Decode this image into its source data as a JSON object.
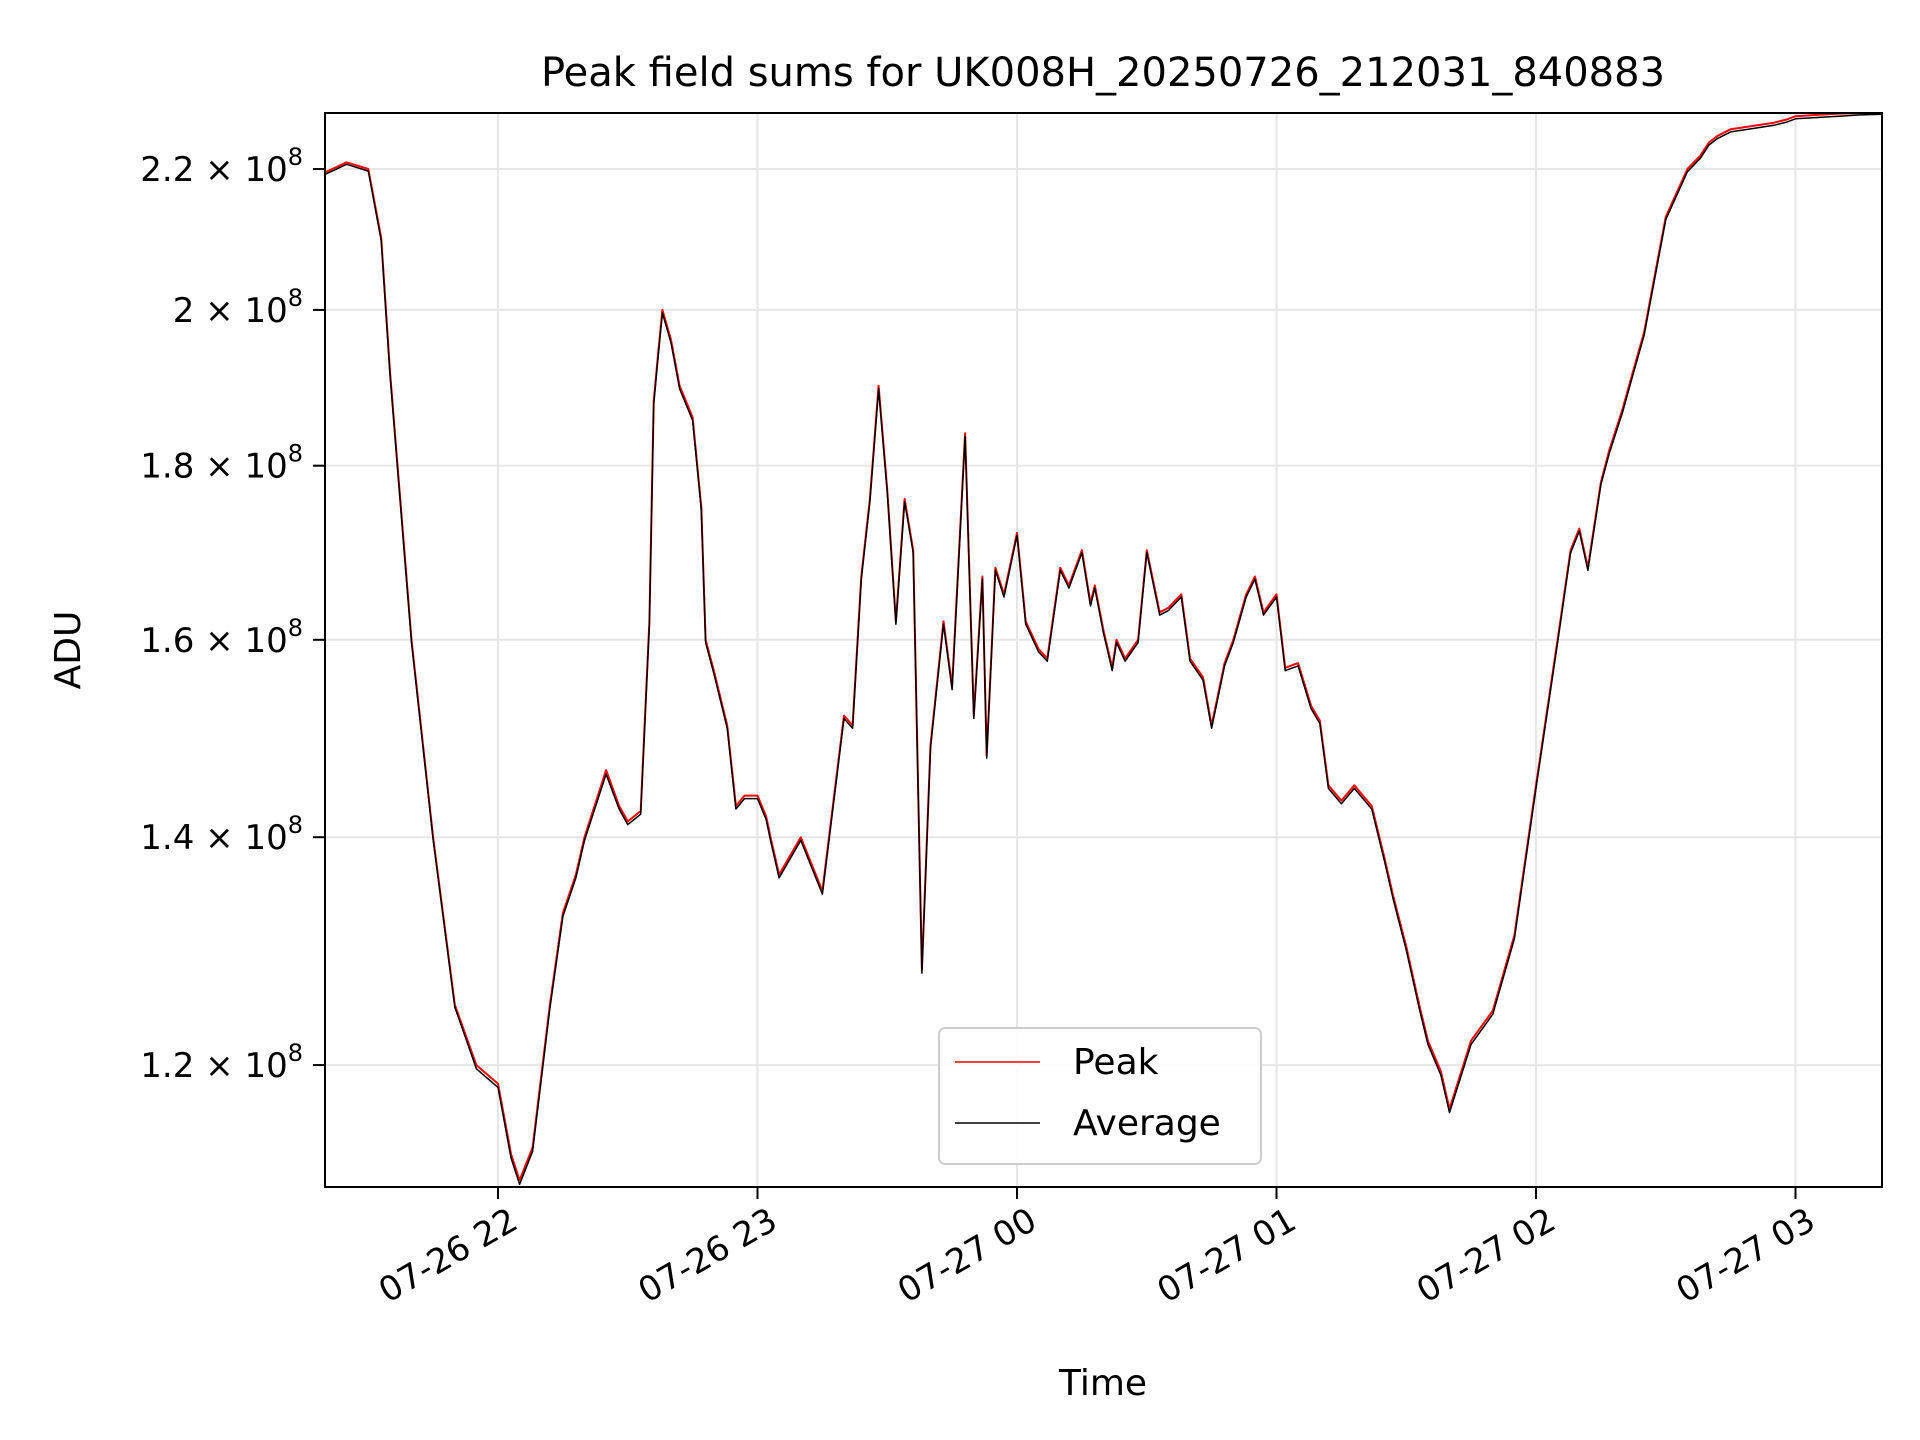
{
  "chart_data": {
    "type": "line",
    "title": "Peak field sums for UK008H_20250726_212031_840883",
    "xlabel": "Time",
    "ylabel": "ADU",
    "y_scale": "log",
    "xlim": [
      "2025-07-26 21:20",
      "2025-07-27 03:20"
    ],
    "ylim": [
      110500000,
      228500000
    ],
    "x_tick_labels": [
      "07-26 22",
      "07-26 23",
      "07-27 00",
      "07-27 01",
      "07-27 02",
      "07-27 03"
    ],
    "x_ticks": [
      "2025-07-26 22:00",
      "2025-07-26 23:00",
      "2025-07-27 00:00",
      "2025-07-27 01:00",
      "2025-07-27 02:00",
      "2025-07-27 03:00"
    ],
    "y_ticks": [
      {
        "value": 120000000,
        "mantissa": "1.2",
        "exp": "8"
      },
      {
        "value": 140000000,
        "mantissa": "1.4",
        "exp": "8"
      },
      {
        "value": 160000000,
        "mantissa": "1.6",
        "exp": "8"
      },
      {
        "value": 180000000,
        "mantissa": "1.8",
        "exp": "8"
      },
      {
        "value": 200000000,
        "mantissa": "2",
        "exp": "8"
      },
      {
        "value": 220000000,
        "mantissa": "2.2",
        "exp": "8"
      }
    ],
    "grid": true,
    "legend_position": "bottom-center",
    "x": [
      "21:20",
      "21:25",
      "21:30",
      "21:33",
      "21:35",
      "21:40",
      "21:45",
      "21:50",
      "21:55",
      "22:00",
      "22:03",
      "22:05",
      "22:08",
      "22:12",
      "22:15",
      "22:18",
      "22:20",
      "22:25",
      "22:28",
      "22:30",
      "22:33",
      "22:35",
      "22:36",
      "22:37",
      "22:38",
      "22:40",
      "22:42",
      "22:45",
      "22:47",
      "22:48",
      "22:50",
      "22:53",
      "22:55",
      "22:57",
      "23:00",
      "23:02",
      "23:03",
      "23:05",
      "23:10",
      "23:15",
      "23:20",
      "23:22",
      "23:24",
      "23:26",
      "23:28",
      "23:30",
      "23:32",
      "23:34",
      "23:36",
      "23:38",
      "23:40",
      "23:43",
      "23:45",
      "23:48",
      "23:50",
      "23:52",
      "23:53",
      "23:55",
      "23:57",
      "24:00",
      "24:02",
      "24:05",
      "24:07",
      "24:10",
      "24:12",
      "24:15",
      "24:17",
      "24:18",
      "24:20",
      "24:22",
      "24:23",
      "24:25",
      "24:28",
      "24:30",
      "24:33",
      "24:35",
      "24:38",
      "24:40",
      "24:43",
      "24:45",
      "24:48",
      "24:50",
      "24:53",
      "24:55",
      "24:57",
      "25:00",
      "25:02",
      "25:05",
      "25:08",
      "25:10",
      "25:12",
      "25:15",
      "25:18",
      "25:20",
      "25:22",
      "25:25",
      "25:27",
      "25:30",
      "25:33",
      "25:35",
      "25:38",
      "25:40",
      "25:45",
      "25:50",
      "25:55",
      "26:00",
      "26:05",
      "26:08",
      "26:10",
      "26:12",
      "26:15",
      "26:17",
      "26:20",
      "26:22",
      "26:25",
      "26:30",
      "26:35",
      "26:38",
      "26:40",
      "26:42",
      "26:45",
      "26:50",
      "26:55",
      "26:58",
      "27:00",
      "27:05",
      "27:10",
      "27:15",
      "27:20"
    ],
    "series": [
      {
        "name": "Peak",
        "color": "#ff0000",
        "values": [
          219500000,
          221000000,
          220000000,
          210000000,
          192000000,
          160000000,
          140000000,
          125000000,
          120000000,
          118500000,
          113000000,
          111000000,
          113500000,
          125000000,
          133000000,
          136500000,
          140000000,
          146500000,
          143000000,
          141500000,
          142500000,
          162000000,
          188000000,
          194000000,
          200000000,
          196000000,
          190000000,
          186000000,
          175000000,
          160000000,
          156500000,
          151000000,
          143000000,
          144000000,
          144000000,
          142000000,
          140000000,
          136500000,
          140000000,
          135000000,
          152000000,
          151000000,
          167000000,
          176000000,
          190000000,
          177000000,
          162000000,
          176000000,
          170000000,
          128000000,
          149000000,
          162000000,
          155000000,
          184000000,
          152000000,
          167000000,
          148000000,
          168000000,
          165000000,
          172000000,
          162000000,
          159000000,
          158000000,
          168000000,
          166000000,
          170000000,
          164000000,
          166000000,
          161000000,
          157000000,
          160000000,
          158000000,
          160000000,
          170000000,
          163000000,
          163500000,
          165000000,
          158000000,
          156000000,
          151000000,
          157500000,
          160000000,
          165000000,
          167000000,
          163000000,
          165000000,
          157000000,
          157500000,
          153000000,
          151500000,
          145000000,
          143500000,
          145000000,
          144000000,
          143000000,
          138000000,
          134500000,
          130000000,
          125000000,
          122000000,
          119500000,
          116500000,
          122000000,
          124500000,
          131000000,
          145000000,
          160000000,
          170000000,
          172500000,
          168000000,
          178000000,
          182000000,
          187000000,
          191000000,
          197000000,
          213000000,
          220000000,
          222000000,
          224000000,
          225000000,
          226000000,
          226500000,
          227000000,
          227500000,
          228000000,
          228200000,
          228400000,
          228500000,
          228500000
        ]
      },
      {
        "name": "Average",
        "color": "#000000",
        "values": [
          219200000,
          220700000,
          219700000,
          209600000,
          191600000,
          159700000,
          139800000,
          124800000,
          119700000,
          118200000,
          112700000,
          110700000,
          113200000,
          124700000,
          132700000,
          136200000,
          139700000,
          146100000,
          142700000,
          141200000,
          142200000,
          161700000,
          187600000,
          193600000,
          199600000,
          195600000,
          189600000,
          185600000,
          174700000,
          159700000,
          156200000,
          150700000,
          142700000,
          143700000,
          143700000,
          141700000,
          139700000,
          136200000,
          139700000,
          134700000,
          151700000,
          150700000,
          166700000,
          175700000,
          189600000,
          176700000,
          161700000,
          175700000,
          169700000,
          127700000,
          148700000,
          161700000,
          154700000,
          183600000,
          151700000,
          166700000,
          147700000,
          167700000,
          164700000,
          171700000,
          161700000,
          158700000,
          157700000,
          167700000,
          165700000,
          169700000,
          163700000,
          165700000,
          160700000,
          156700000,
          159700000,
          157700000,
          159700000,
          169700000,
          162700000,
          163200000,
          164700000,
          157700000,
          155700000,
          150700000,
          157200000,
          159700000,
          164700000,
          166700000,
          162700000,
          164700000,
          156700000,
          157200000,
          152700000,
          151200000,
          144700000,
          143200000,
          144700000,
          143700000,
          142700000,
          137700000,
          134200000,
          129700000,
          124700000,
          121700000,
          119200000,
          116200000,
          121700000,
          124200000,
          130700000,
          144700000,
          159700000,
          169700000,
          172200000,
          167700000,
          177700000,
          181600000,
          186600000,
          190600000,
          196600000,
          212600000,
          219600000,
          221600000,
          223600000,
          224600000,
          225600000,
          226100000,
          226600000,
          227100000,
          227600000,
          227800000,
          228000000,
          228200000,
          228300000
        ]
      }
    ]
  }
}
